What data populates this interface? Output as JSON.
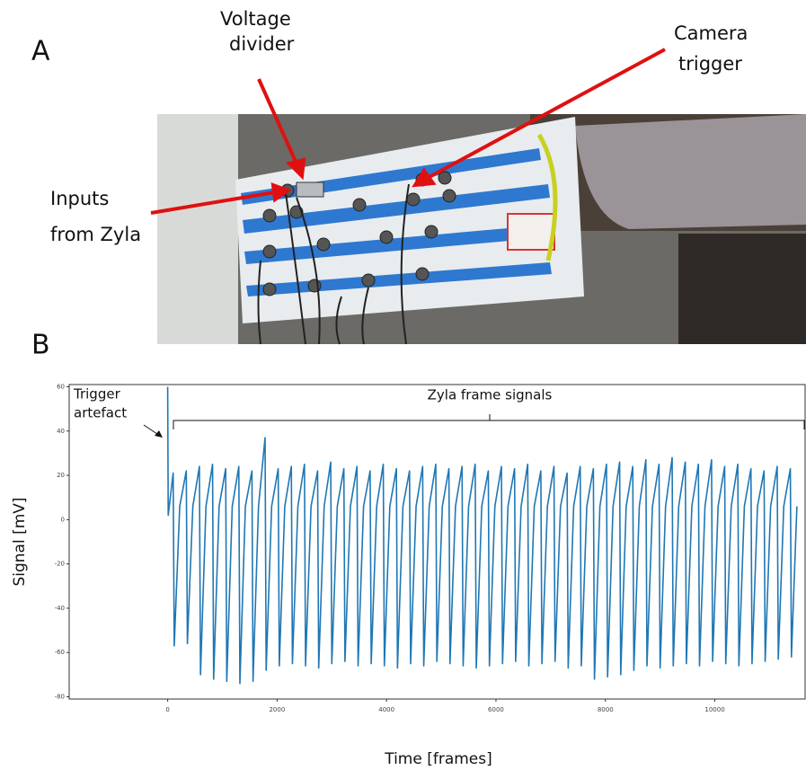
{
  "panel_a": {
    "label": "A",
    "annotations": [
      {
        "lines": [
          "Voltage",
          "divider"
        ]
      },
      {
        "lines": [
          "Camera",
          "trigger"
        ]
      },
      {
        "lines": [
          "Inputs",
          "from Zyla"
        ]
      }
    ]
  },
  "chart_data": {
    "type": "line",
    "panel_label": "B",
    "trigger_annotation": [
      "Trigger",
      "artefact"
    ],
    "annotations": [
      "Zyla frame signals"
    ],
    "x_label": "Time [frames]",
    "y_label": "Signal [mV]",
    "xlim": [
      -1800,
      11650
    ],
    "ylim": [
      -81,
      61
    ],
    "xticks": [
      0,
      2000,
      4000,
      6000,
      8000,
      10000
    ],
    "yticks": [
      -80,
      -60,
      -40,
      -20,
      0,
      20,
      40,
      60
    ],
    "series": [
      {
        "color": "#1f77b4",
        "x": [
          0,
          10,
          100,
          120,
          220,
          340,
          360,
          460,
          580,
          600,
          700,
          820,
          840,
          940,
          1060,
          1080,
          1180,
          1300,
          1320,
          1420,
          1540,
          1560,
          1660,
          1780,
          1800,
          1900,
          2020,
          2040,
          2140,
          2260,
          2280,
          2380,
          2500,
          2520,
          2620,
          2740,
          2760,
          2860,
          2980,
          3000,
          3100,
          3220,
          3240,
          3340,
          3460,
          3480,
          3580,
          3700,
          3720,
          3820,
          3940,
          3960,
          4060,
          4180,
          4200,
          4300,
          4420,
          4440,
          4540,
          4660,
          4680,
          4780,
          4900,
          4920,
          5020,
          5140,
          5160,
          5260,
          5380,
          5400,
          5500,
          5620,
          5640,
          5740,
          5860,
          5880,
          5980,
          6100,
          6120,
          6220,
          6340,
          6360,
          6460,
          6580,
          6600,
          6700,
          6820,
          6840,
          6940,
          7060,
          7080,
          7180,
          7300,
          7320,
          7420,
          7540,
          7560,
          7660,
          7780,
          7800,
          7900,
          8020,
          8040,
          8140,
          8260,
          8280,
          8380,
          8500,
          8520,
          8620,
          8740,
          8760,
          8860,
          8980,
          9000,
          9100,
          9220,
          9240,
          9340,
          9460,
          9480,
          9580,
          9700,
          9720,
          9820,
          9940,
          9960,
          10060,
          10180,
          10200,
          10300,
          10420,
          10440,
          10540,
          10660,
          10680,
          10780,
          10900,
          10920,
          11020,
          11140,
          11160,
          11260,
          11380,
          11400,
          11500
        ],
        "values": [
          60,
          2,
          21,
          -57,
          6,
          22,
          -56,
          6,
          24,
          -70,
          6,
          25,
          -72,
          6,
          23,
          -73,
          6,
          24,
          -74,
          6,
          22,
          -73,
          6,
          37,
          -68,
          6,
          23,
          -66,
          6,
          24,
          -65,
          6,
          25,
          -66,
          6,
          22,
          -67,
          6,
          26,
          -65,
          6,
          23,
          -64,
          6,
          24,
          -66,
          6,
          22,
          -65,
          6,
          25,
          -66,
          6,
          23,
          -67,
          6,
          22,
          -65,
          6,
          24,
          -66,
          6,
          25,
          -64,
          6,
          23,
          -65,
          6,
          24,
          -66,
          6,
          25,
          -67,
          6,
          22,
          -66,
          6,
          24,
          -65,
          6,
          23,
          -64,
          6,
          25,
          -66,
          6,
          22,
          -65,
          6,
          24,
          -64,
          6,
          21,
          -67,
          6,
          24,
          -66,
          6,
          23,
          -72,
          6,
          25,
          -71,
          6,
          26,
          -70,
          6,
          24,
          -68,
          6,
          27,
          -66,
          6,
          25,
          -67,
          6,
          28,
          -66,
          6,
          26,
          -65,
          6,
          25,
          -66,
          6,
          27,
          -64,
          6,
          24,
          -65,
          6,
          25,
          -66,
          6,
          23,
          -65,
          6,
          22,
          -64,
          6,
          24,
          -63,
          6,
          23,
          -62,
          6
        ]
      }
    ]
  }
}
